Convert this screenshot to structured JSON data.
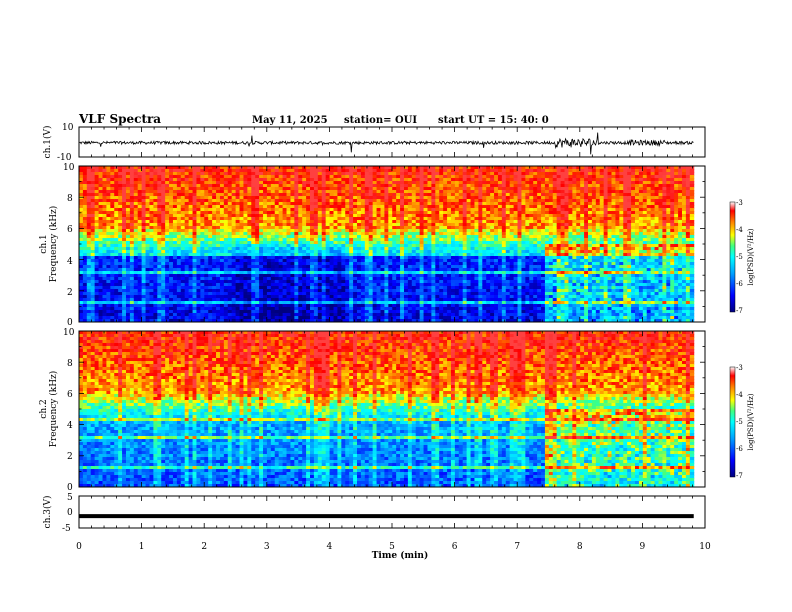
{
  "header": {
    "title": "VLF Spectra",
    "date": "May 11, 2025",
    "station": "station= OUI",
    "start": "start  UT =   15: 40: 0"
  },
  "chart_data": [
    {
      "type": "line",
      "ylabel": "ch.1(V)",
      "xlim": [
        0,
        10
      ],
      "ylim": [
        -10,
        10
      ],
      "yticks": [
        "10",
        "-10"
      ],
      "note": "noisy broadband waveform centered near -0.5 V with spikes; stronger bursts around 7.8 min"
    },
    {
      "type": "heatmap",
      "ylabel_top": "ch.1",
      "ylabel": "Frequency  (kHz)",
      "xlim": [
        0,
        10
      ],
      "ylim": [
        0,
        10
      ],
      "yticks": [
        "0",
        "2",
        "4",
        "6",
        "8",
        "10"
      ],
      "colorbar": {
        "label": "log(PSD)(V²/Hz)",
        "range": [
          -7,
          -3
        ],
        "ticks": [
          "-3",
          "-4",
          "-5",
          "-6",
          "-7"
        ]
      },
      "colors": [
        "#00007f",
        "#0000ff",
        "#00a0ff",
        "#00ffff",
        "#40ff80",
        "#ffff00",
        "#ff8000",
        "#ff0000",
        "#b00000"
      ]
    },
    {
      "type": "heatmap",
      "ylabel_top": "ch.2",
      "ylabel": "Frequency  (kHz)",
      "xlim": [
        0,
        10
      ],
      "ylim": [
        0,
        10
      ],
      "yticks": [
        "0",
        "2",
        "4",
        "6",
        "8",
        "10"
      ],
      "colorbar": {
        "label": "log(PSD)(V²/Hz)",
        "range": [
          -7,
          -3
        ],
        "ticks": [
          "-3",
          "-4",
          "-5",
          "-6",
          "-7"
        ]
      }
    },
    {
      "type": "line",
      "ylabel": "ch.3(V)",
      "xlim": [
        0,
        10
      ],
      "ylim": [
        -5,
        5
      ],
      "yticks": [
        "5",
        "0",
        "-5"
      ],
      "y_value": -1.3,
      "note": "flat constant level across the full interval"
    }
  ],
  "xaxis": {
    "label": "Time  (min)",
    "ticks": [
      "0",
      "1",
      "2",
      "3",
      "4",
      "5",
      "6",
      "7",
      "8",
      "9",
      "10"
    ]
  }
}
